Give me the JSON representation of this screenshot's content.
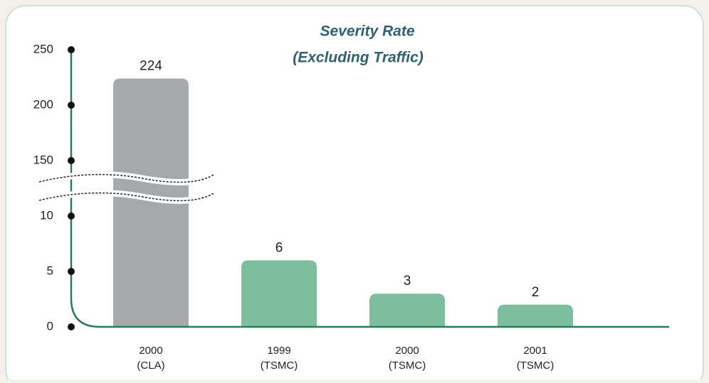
{
  "chart_data": {
    "type": "bar",
    "title": [
      "Severity Rate",
      "(Excluding Traffic)"
    ],
    "categories": [
      [
        "2000",
        "(CLA)"
      ],
      [
        "1999",
        "(TSMC)"
      ],
      [
        "2000",
        "(TSMC)"
      ],
      [
        "2001",
        "(TSMC)"
      ]
    ],
    "values": [
      224,
      6,
      3,
      2
    ],
    "colors": [
      "#a5a9ab",
      "#7dbf9c",
      "#7dbf9c",
      "#7dbf9c"
    ],
    "ylim": [
      0,
      250
    ],
    "yticks": [
      0,
      5,
      10,
      150,
      200,
      250
    ],
    "y_break": true
  }
}
